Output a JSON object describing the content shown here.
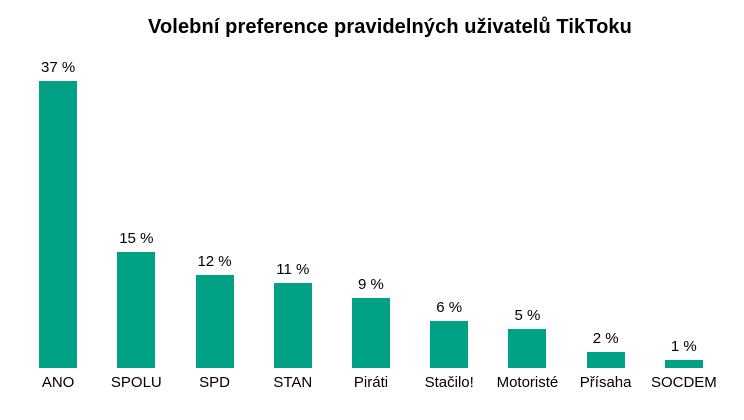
{
  "chart_data": {
    "type": "bar",
    "title": "Volební preference pravidelných uživatelů TikToku",
    "categories": [
      "ANO",
      "SPOLU",
      "SPD",
      "STAN",
      "Piráti",
      "Stačilo!",
      "Motoristé",
      "Přísaha",
      "SOCDEM"
    ],
    "values": [
      37,
      15,
      12,
      11,
      9,
      6,
      5,
      2,
      1
    ],
    "value_labels": [
      "37 %",
      "15 %",
      "12 %",
      "11 %",
      "9 %",
      "6 %",
      "5 %",
      "2 %",
      "1 %"
    ],
    "unit": "%",
    "ylabel": "",
    "xlabel": "",
    "ylim": [
      0,
      40
    ],
    "grid": false,
    "legend": false,
    "axes_visible": false,
    "bar_color": "#00A184",
    "title_color": "#000000",
    "label_color": "#000000",
    "background_color": "#FFFFFF"
  }
}
